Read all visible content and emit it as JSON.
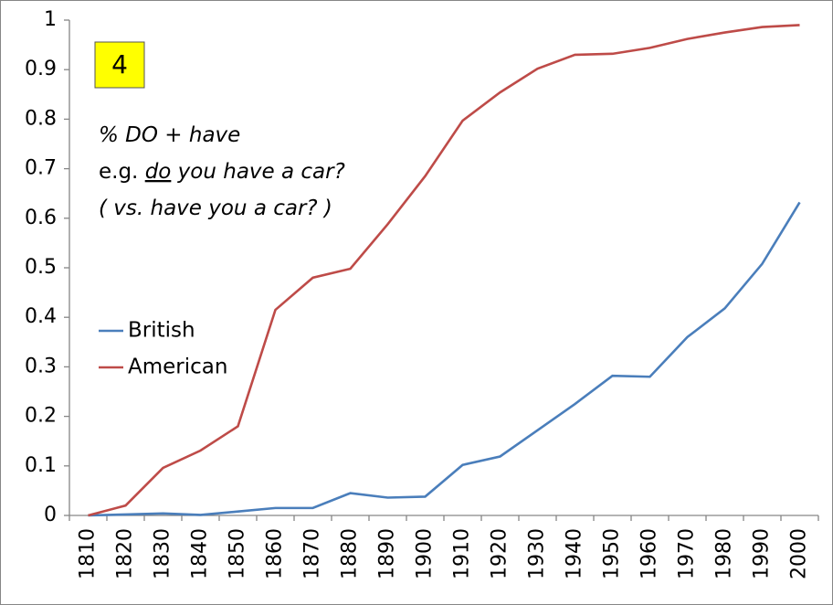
{
  "chart_data": {
    "type": "line",
    "annotations": {
      "badge": "4",
      "lines": [
        [
          "% DO + have"
        ],
        [
          "e.g. ",
          "do",
          " you have a car?"
        ],
        [
          "( vs. have you a car? )"
        ]
      ]
    },
    "categories": [
      "1810",
      "1820",
      "1830",
      "1840",
      "1850",
      "1860",
      "1870",
      "1880",
      "1890",
      "1900",
      "1910",
      "1920",
      "1930",
      "1940",
      "1950",
      "1960",
      "1970",
      "1980",
      "1990",
      "2000"
    ],
    "series": [
      {
        "name": "British",
        "color": "#4a7ebb",
        "values": [
          0,
          0.002,
          0.004,
          0.001,
          0.008,
          0.015,
          0.015,
          0.045,
          0.036,
          0.038,
          0.102,
          0.119,
          0.172,
          0.225,
          0.282,
          0.28,
          0.36,
          0.418,
          0.508,
          0.632
        ]
      },
      {
        "name": "American",
        "color": "#be4b48",
        "values": [
          0,
          0.02,
          0.096,
          0.131,
          0.18,
          0.415,
          0.48,
          0.498,
          0.588,
          0.685,
          0.797,
          0.854,
          0.902,
          0.93,
          0.932,
          0.944,
          0.962,
          0.975,
          0.986,
          0.99
        ]
      }
    ],
    "ylim": [
      0,
      1
    ],
    "yticks": [
      0,
      0.1,
      0.2,
      0.3,
      0.4,
      0.5,
      0.6,
      0.7,
      0.8,
      0.9,
      1
    ],
    "grid": false
  }
}
